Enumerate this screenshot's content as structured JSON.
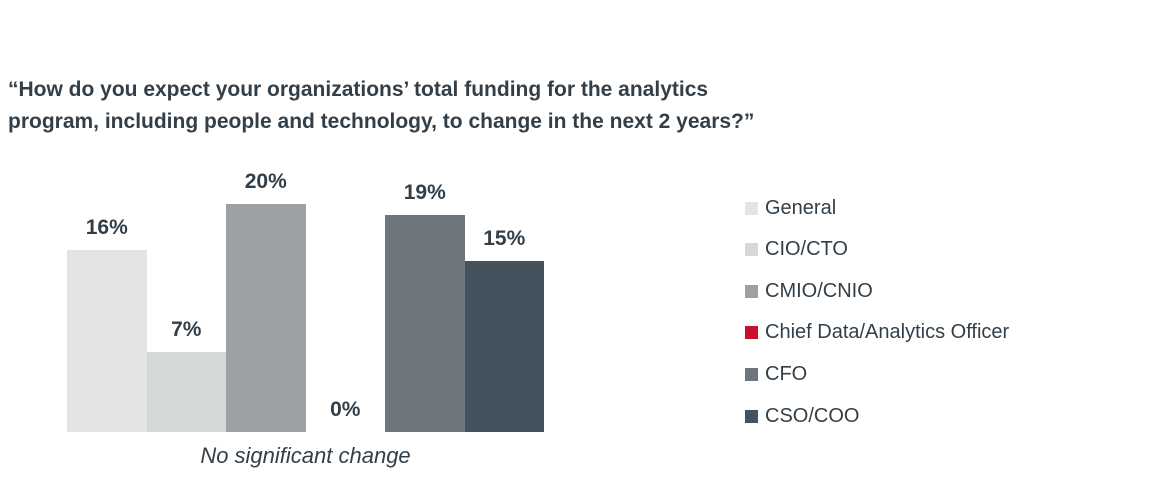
{
  "title_lines": [
    "“How do you expect your organizations’ total funding for the analytics",
    "program, including people and technology, to change in the next 2 years?”"
  ],
  "chart_data": {
    "type": "bar",
    "title": "“How do you expect your organizations’ total funding for the analytics program, including people and technology, to change in the next 2 years?”",
    "categories": [
      "No significant change"
    ],
    "series": [
      {
        "name": "General",
        "values": [
          16
        ],
        "color": "#e4e4e4"
      },
      {
        "name": "CIO/CTO",
        "values": [
          7
        ],
        "color": "#d5d8d8"
      },
      {
        "name": "CMIO/CNIO",
        "values": [
          20
        ],
        "color": "#9aa0a4"
      },
      {
        "name": "Chief Data/Analytics Officer",
        "values": [
          0
        ],
        "color": "#c8102e"
      },
      {
        "name": "CFO",
        "values": [
          19
        ],
        "color": "#6e757c"
      },
      {
        "name": "CSO/COO",
        "values": [
          15
        ],
        "color": "#44525d"
      }
    ],
    "data_labels": [
      "16%",
      "7%",
      "20%",
      "0%",
      "19%",
      "15%"
    ],
    "value_suffix": "%",
    "xlabel": "",
    "ylabel": "",
    "ylim": [
      0,
      24
    ],
    "grid": false,
    "axes_hidden": true,
    "legend_position": "right"
  },
  "colors": {
    "text": "#333f48",
    "background": "#ffffff"
  }
}
